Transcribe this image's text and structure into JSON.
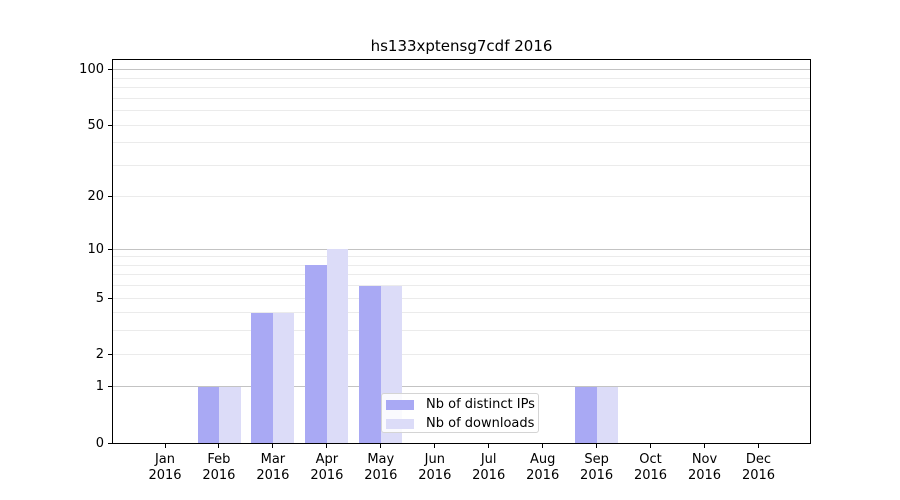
{
  "title": "hs133xptensg7cdf 2016",
  "chart_data": {
    "type": "bar",
    "title": "hs133xptensg7cdf 2016",
    "year": "2016",
    "categories": [
      "Jan",
      "Feb",
      "Mar",
      "Apr",
      "May",
      "Jun",
      "Jul",
      "Aug",
      "Sep",
      "Oct",
      "Nov",
      "Dec"
    ],
    "series": [
      {
        "name": "Nb of distinct IPs",
        "color": "#a9a9f4",
        "values": [
          0,
          1,
          4,
          8,
          6,
          0,
          0,
          0,
          1,
          0,
          0,
          0
        ]
      },
      {
        "name": "Nb of downloads",
        "color": "#dcdcf8",
        "values": [
          0,
          1,
          4,
          10,
          6,
          0,
          0,
          0,
          1,
          0,
          0,
          0
        ]
      }
    ],
    "xlabel": "",
    "ylabel": "",
    "yscale": "log1p",
    "ylim": [
      0,
      113
    ],
    "yticks": [
      0,
      1,
      2,
      5,
      10,
      20,
      50,
      100
    ],
    "gridlines_major": [
      1,
      10,
      100
    ],
    "gridlines_minor": [
      2,
      3,
      4,
      5,
      6,
      7,
      8,
      9,
      20,
      30,
      40,
      50,
      60,
      70,
      80,
      90
    ],
    "grid": true,
    "legend_position": "lower-center-inside"
  }
}
